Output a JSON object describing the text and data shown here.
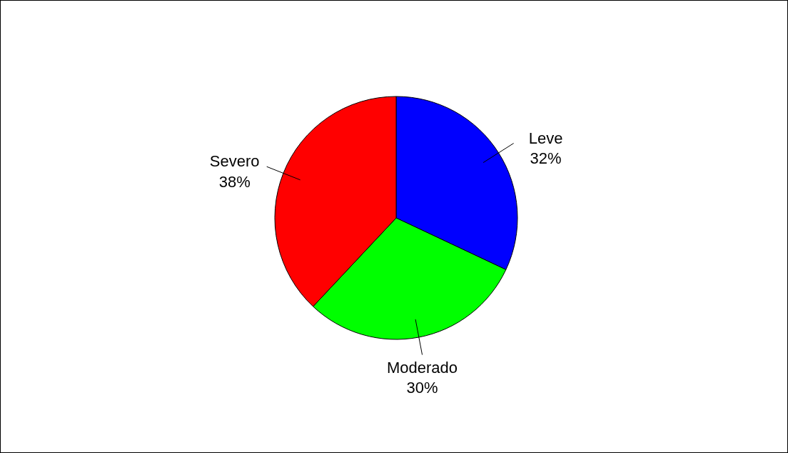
{
  "chart_data": {
    "type": "pie",
    "categories": [
      "Leve",
      "Moderado",
      "Severo"
    ],
    "values": [
      32,
      30,
      38
    ],
    "colors": [
      "#0000ff",
      "#00ff00",
      "#ff0000"
    ],
    "value_labels": [
      "32%",
      "30%",
      "38%"
    ],
    "legend": false
  }
}
